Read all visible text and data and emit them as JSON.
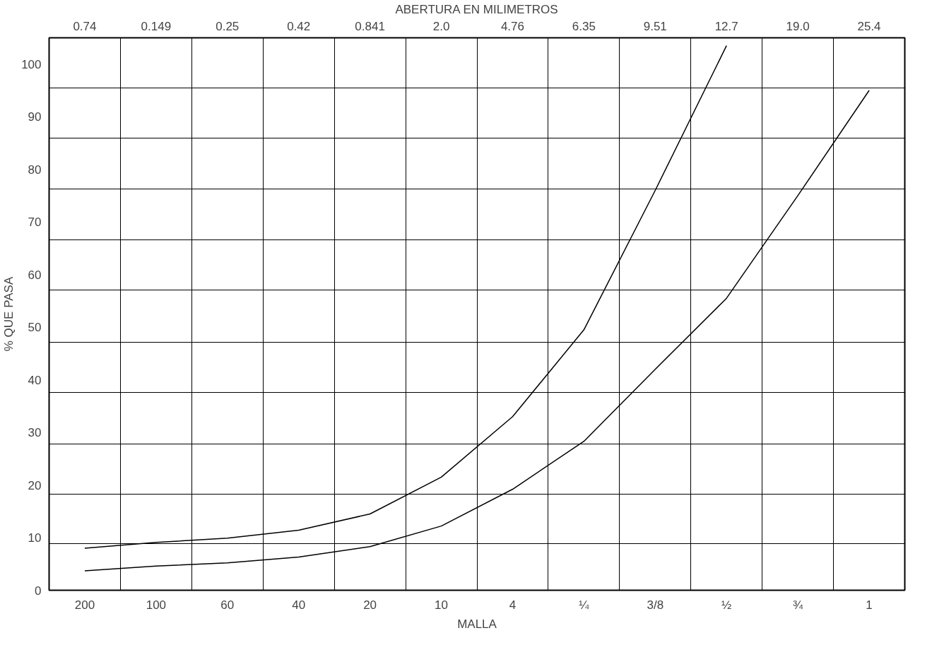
{
  "chart_data": {
    "type": "line",
    "x2label": "ABERTURA EN MILIMETROS",
    "xlabel": "MALLA",
    "ylabel": "% QUE PASA",
    "categories": [
      "200",
      "100",
      "60",
      "40",
      "20",
      "10",
      "4",
      "¼",
      "3/8",
      "½",
      "¾",
      "1"
    ],
    "annotations": [
      "0.74",
      "0.149",
      "0.25",
      "0.42",
      "0.841",
      "2.0",
      "4.76",
      "6.35",
      "9.51",
      "12.7",
      "19.0",
      "25.4"
    ],
    "series": [
      {
        "color": "#000000",
        "values": [
          8.0,
          9.1,
          9.9,
          11.4,
          14.5,
          21.5,
          33,
          49.5,
          76,
          103.5,
          null,
          null
        ]
      },
      {
        "color": "#000000",
        "values": [
          3.7,
          4.6,
          5.2,
          6.3,
          8.3,
          12.2,
          19.2,
          28.3,
          42,
          55.5,
          75,
          95
        ]
      }
    ],
    "ylim": [
      0,
      105
    ],
    "yticks": [
      0,
      10,
      20,
      30,
      40,
      50,
      60,
      70,
      80,
      90,
      100,
      {
        "value": 8.9,
        "label": null
      },
      {
        "value": 18.3,
        "label": null
      },
      {
        "value": 27.8,
        "label": null
      },
      {
        "value": 37.6,
        "label": null
      },
      {
        "value": 47.1,
        "label": null
      },
      {
        "value": 57.1,
        "label": null
      },
      {
        "value": 66.6,
        "label": null
      },
      {
        "value": 76.3,
        "label": null
      },
      {
        "value": 86.0,
        "label": null
      },
      {
        "value": 95.5,
        "label": null
      }
    ],
    "grid": true,
    "marker": "none",
    "line_style": "solid"
  }
}
